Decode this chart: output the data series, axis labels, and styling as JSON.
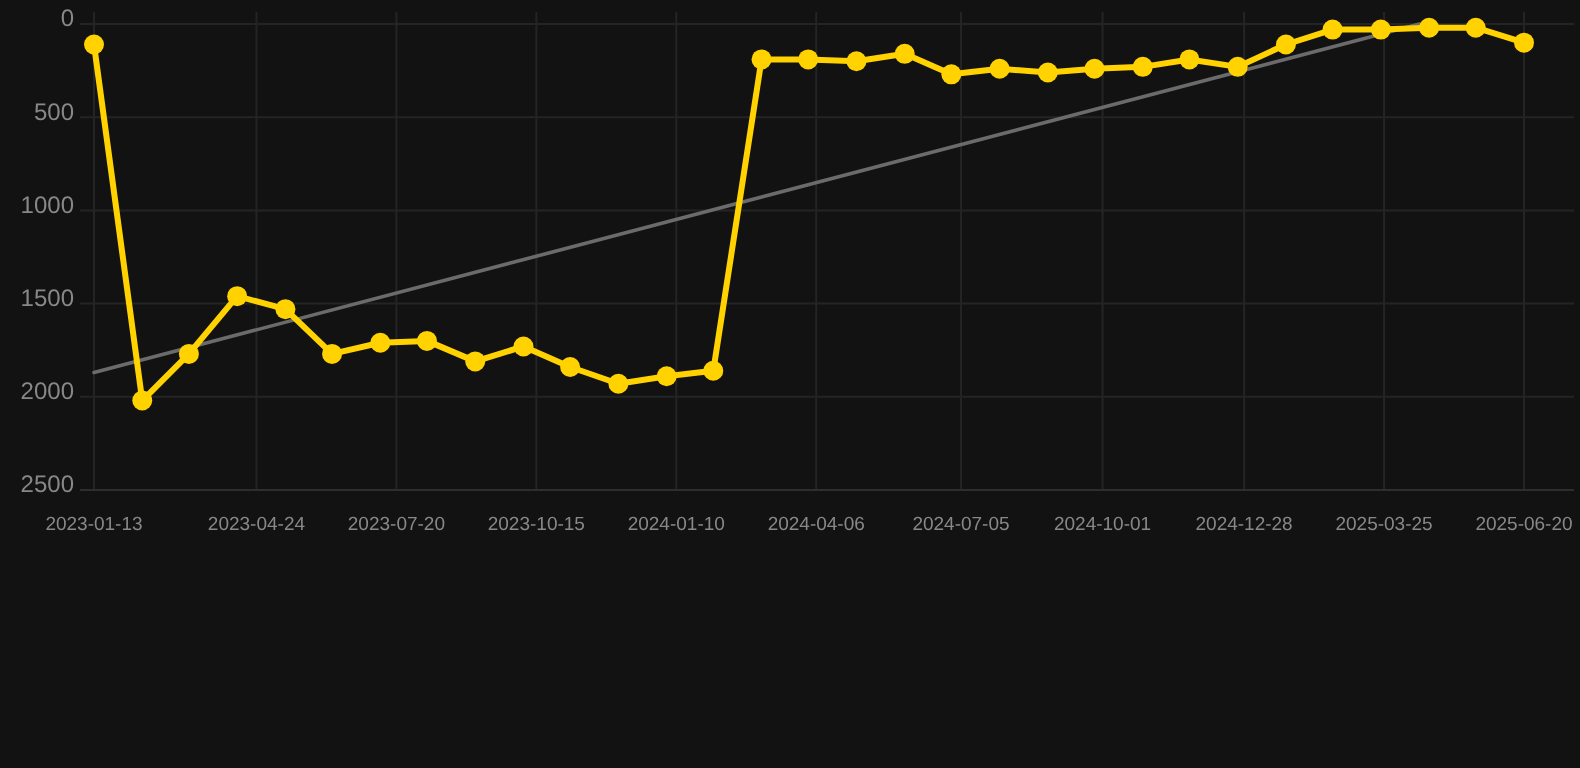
{
  "chart_data": {
    "type": "line",
    "x": [
      "2023-01-13",
      "2023-02-12",
      "2023-03-13",
      "2023-04-12",
      "2023-05-12",
      "2023-06-10",
      "2023-07-10",
      "2023-08-08",
      "2023-09-07",
      "2023-10-07",
      "2023-11-05",
      "2023-12-05",
      "2024-01-04",
      "2024-02-02",
      "2024-03-03",
      "2024-04-01",
      "2024-05-01",
      "2024-05-31",
      "2024-06-29",
      "2024-07-29",
      "2024-08-28",
      "2024-09-26",
      "2024-10-26",
      "2024-11-24",
      "2024-12-24",
      "2025-01-23",
      "2025-02-21",
      "2025-03-23",
      "2025-04-22",
      "2025-05-21",
      "2025-06-20"
    ],
    "series": [
      {
        "color": "#ffd200",
        "marker": "circle",
        "values": [
          110,
          2020,
          1770,
          1460,
          1530,
          1770,
          1710,
          1700,
          1810,
          1730,
          1840,
          1930,
          1890,
          1860,
          190,
          190,
          200,
          160,
          270,
          240,
          260,
          240,
          230,
          190,
          230,
          110,
          30,
          30,
          20,
          20,
          100
        ]
      },
      {
        "type": "line",
        "color": "#6b6b6b",
        "marker": "none",
        "x": [
          "2023-01-13",
          "2025-04-16"
        ],
        "values": [
          1870,
          0
        ]
      }
    ],
    "xlim": [
      "2023-01-13",
      "2025-06-20"
    ],
    "xticks": [
      "2023-01-13",
      "2023-04-24",
      "2023-07-20",
      "2023-10-15",
      "2024-01-10",
      "2024-04-06",
      "2024-07-05",
      "2024-10-01",
      "2024-12-28",
      "2025-03-25",
      "2025-06-20"
    ],
    "ylim": [
      2500,
      0
    ],
    "yticks": [
      0,
      500,
      1000,
      1500,
      2000,
      2500
    ],
    "grid": true
  }
}
